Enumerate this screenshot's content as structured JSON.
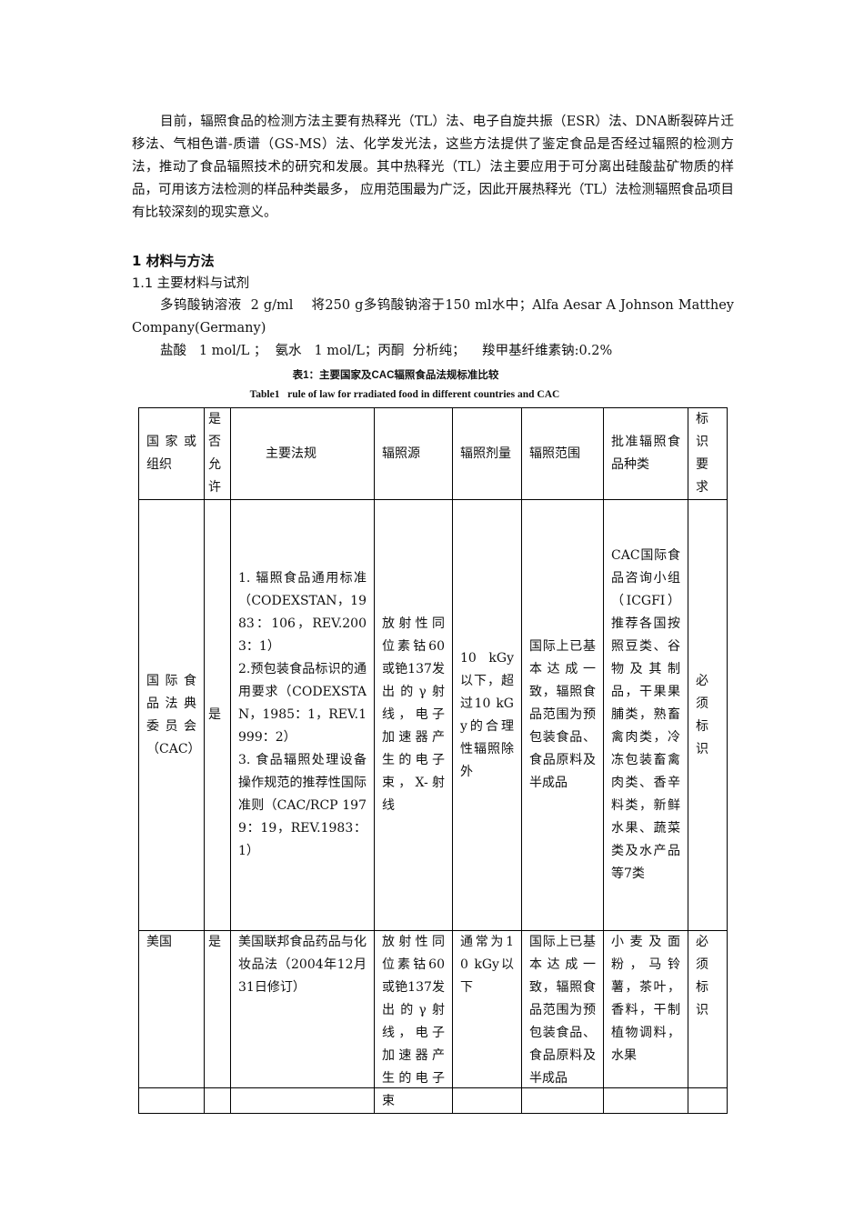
{
  "intro": "目前，辐照食品的检测方法主要有热释光（TL）法、电子自旋共振（ESR）法、DNA断裂碎片迁移法、气相色谱-质谱（GS-MS）法、化学发光法，这些方法提供了鉴定食品是否经过辐照的检测方法，推动了食品辐照技术的研究和发展。其中热释光（TL）法主要应用于可分离出硅酸盐矿物质的样品，可用该方法检测的样品种类最多， 应用范围最为广泛，因此开展热释光（TL）法检测辐照食品项目有比较深刻的现实意义。",
  "section1": "1  材料与方法",
  "section1_1": "1.1  主要材料与试剂",
  "reagent1": "多钨酸钠溶液  2 g/ml    将250 g多钨酸钠溶于150 ml水中；Alfa Aesar A Johnson Matthey Company(Germany)",
  "reagent2": "盐酸   1 mol/L ；  氨水   1 mol/L；丙酮  分析纯；    羧甲基纤维素钠:0.2%",
  "table_caption_cn": "表1：主要国家及CAC辐照食品法规标准比较",
  "table_caption_en": "Table1   rule of law for rradiated food in different countries and CAC",
  "table": {
    "headers": [
      "国家或组织",
      "是否允许",
      "主要法规",
      "辐照源",
      "辐照剂量",
      "辐照范围",
      "批准辐照食品种类",
      "标识要求"
    ],
    "rows": [
      [
        "国际食品法典委员会（CAC）",
        "是",
        "1. 辐照食品通用标准（CODEXSTAN，1983：106，REV.2003：1）\n2.预包装食品标识的通用要求（CODEXSTAN，1985：1，REV.1999：2）\n3. 食品辐照处理设备操作规范的推荐性国际准则（CAC/RCP 1979：19，REV.1983：1）",
        "放射性同位素钴60或铯137发出的γ射线，电子加速器产生的电子束，X-射线",
        "10 kGy以下，超过10 kGy的合理性辐照除外",
        "国际上已基本达成一致，辐照食品范围为预包装食品、食品原料及半成品",
        "CAC国际食品咨询小组（ICGFI）推荐各国按照豆类、谷物及其制品，干果果脯类，熟畜禽肉类，冷冻包装畜禽肉类、香辛料类，新鲜水果、蔬菜类及水产品等7类",
        "必须标识"
      ],
      [
        "美国",
        "是",
        "美国联邦食品药品与化妆品法（2004年12月31日修订）",
        "放射性同位素钴60或铯137发出的γ射线，电子加速器产生的电子束",
        "通常为10 kGy以下",
        "国际上已基本达成一致，辐照食品范围为预包装食品、食品原料及半成品",
        "小麦及面粉，马铃薯，茶叶，香料，干制植物调料，水果",
        "必须标识"
      ]
    ]
  }
}
